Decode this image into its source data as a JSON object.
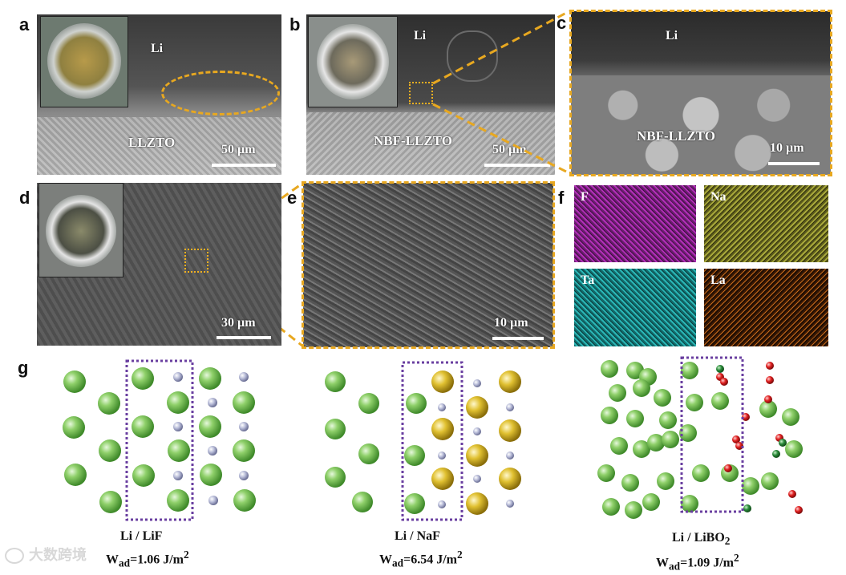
{
  "panels": {
    "a": {
      "label": "a",
      "top_text": "Li",
      "bottom_text": "LLZTO",
      "scale": "50 µm"
    },
    "b": {
      "label": "b",
      "top_text": "Li",
      "bottom_text": "NBF-LLZTO",
      "scale": "50 µm"
    },
    "c": {
      "label": "c",
      "top_text": "Li",
      "bottom_text": "NBF-LLZTO",
      "scale": "10 µm"
    },
    "d": {
      "label": "d",
      "scale": "30 µm"
    },
    "e": {
      "label": "e",
      "scale": "10 µm"
    },
    "f": {
      "label": "f",
      "maps": [
        {
          "element": "F",
          "color": "#b22fb8"
        },
        {
          "element": "Na",
          "color": "#a8a83a"
        },
        {
          "element": "Ta",
          "color": "#2ab6b6"
        },
        {
          "element": "La",
          "color": "#c86a1a"
        }
      ]
    },
    "g": {
      "label": "g",
      "structures": [
        {
          "name": "Li / LiF",
          "wad_prefix": "W",
          "wad_sub": "ad",
          "wad_value": "=1.06 J/m",
          "wad_sup": "2"
        },
        {
          "name": "Li / NaF",
          "wad_prefix": "W",
          "wad_sub": "ad",
          "wad_value": "=6.54 J/m",
          "wad_sup": "2"
        },
        {
          "name_main": "Li / LiBO",
          "name_sub": "2",
          "wad_prefix": "W",
          "wad_sub": "ad",
          "wad_value": "=1.09 J/m",
          "wad_sup": "2"
        }
      ]
    }
  },
  "watermark": "大数跨境",
  "colors": {
    "accent_dash": "#e8a820",
    "box_purple": "#6a3fa0",
    "li_atom": "#7cc65a",
    "f_atom": "#b8bcd8",
    "na_atom": "#e0c030",
    "o_atom": "#e02020",
    "b_atom": "#2a8a3a"
  }
}
